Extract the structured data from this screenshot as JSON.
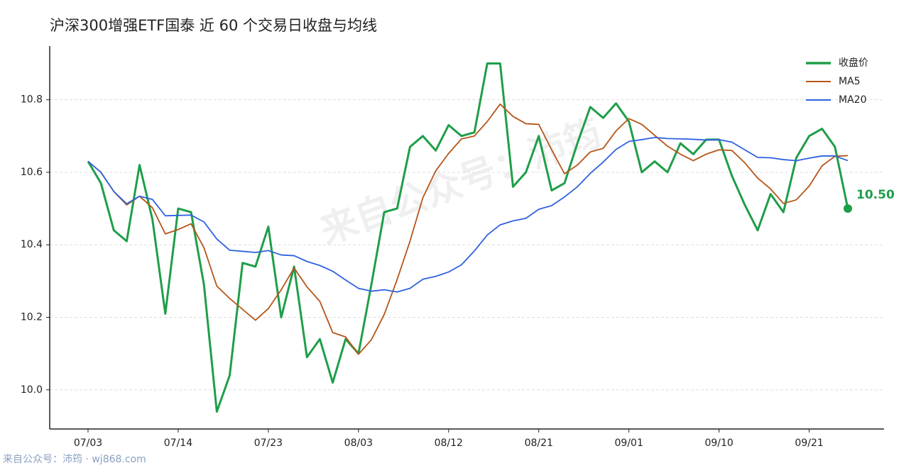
{
  "chart_data": {
    "type": "line",
    "title": "沪深300增强ETF国泰 近 60 个交易日收盘与均线",
    "watermark": "来自公众号：沛筠",
    "footer": "来自公众号：沛筠 · wj868.com",
    "categories": [
      "07/03",
      null,
      null,
      null,
      null,
      null,
      null,
      "07/14",
      null,
      null,
      null,
      null,
      null,
      null,
      "07/23",
      null,
      null,
      null,
      null,
      null,
      null,
      "08/03",
      null,
      null,
      null,
      null,
      null,
      null,
      "08/12",
      null,
      null,
      null,
      null,
      null,
      null,
      "08/21",
      null,
      null,
      null,
      null,
      null,
      null,
      "09/01",
      null,
      null,
      null,
      null,
      null,
      null,
      "09/10",
      null,
      null,
      null,
      null,
      null,
      null,
      "09/21",
      null,
      null,
      null
    ],
    "series": [
      {
        "name": "收盘价",
        "color": "#1f9e49",
        "values": [
          10.63,
          10.57,
          10.44,
          10.41,
          10.62,
          10.47,
          10.21,
          10.5,
          10.49,
          10.29,
          9.94,
          10.04,
          10.35,
          10.34,
          10.45,
          10.2,
          10.34,
          10.09,
          10.14,
          10.02,
          10.14,
          10.1,
          10.29,
          10.49,
          10.5,
          10.67,
          10.7,
          10.66,
          10.73,
          10.7,
          10.71,
          10.9,
          10.9,
          10.56,
          10.6,
          10.7,
          10.55,
          10.57,
          10.68,
          10.78,
          10.75,
          10.79,
          10.74,
          10.6,
          10.63,
          10.6,
          10.68,
          10.65,
          10.69,
          10.69,
          10.59,
          10.51,
          10.44,
          10.54,
          10.49,
          10.64,
          10.7,
          10.72,
          10.67,
          10.5
        ],
        "value_labels": [
          null,
          null,
          null,
          null,
          null,
          null,
          null,
          null,
          null,
          null,
          null,
          null,
          null,
          null,
          null,
          null,
          null,
          null,
          null,
          null,
          null,
          null,
          null,
          null,
          null,
          null,
          null,
          null,
          null,
          null,
          null,
          null,
          null,
          null,
          null,
          null,
          null,
          null,
          null,
          null,
          null,
          null,
          null,
          null,
          null,
          null,
          null,
          null,
          null,
          null,
          null,
          null,
          null,
          null,
          null,
          null,
          null,
          null,
          null,
          "10.50"
        ]
      },
      {
        "name": "MA5",
        "color": "#b5561a",
        "values": [
          10.63,
          10.6,
          10.547,
          10.51,
          10.534,
          10.502,
          10.43,
          10.442,
          10.458,
          10.392,
          10.286,
          10.252,
          10.222,
          10.192,
          10.224,
          10.276,
          10.336,
          10.284,
          10.244,
          10.158,
          10.146,
          10.098,
          10.138,
          10.208,
          10.304,
          10.41,
          10.53,
          10.604,
          10.652,
          10.692,
          10.7,
          10.74,
          10.788,
          10.754,
          10.734,
          10.732,
          10.662,
          10.596,
          10.62,
          10.656,
          10.666,
          10.714,
          10.748,
          10.732,
          10.702,
          10.672,
          10.65,
          10.632,
          10.65,
          10.662,
          10.66,
          10.626,
          10.584,
          10.554,
          10.514,
          10.524,
          10.562,
          10.618,
          10.644,
          10.646
        ]
      },
      {
        "name": "MA20",
        "color": "#2f62e0",
        "values": [
          10.63,
          10.6,
          10.547,
          10.513,
          10.534,
          10.525,
          10.48,
          10.481,
          10.482,
          10.463,
          10.416,
          10.385,
          10.382,
          10.379,
          10.384,
          10.372,
          10.37,
          10.354,
          10.343,
          10.327,
          10.303,
          10.28,
          10.272,
          10.276,
          10.27,
          10.28,
          10.305,
          10.313,
          10.325,
          10.345,
          10.383,
          10.427,
          10.455,
          10.466,
          10.473,
          10.498,
          10.508,
          10.532,
          10.56,
          10.597,
          10.628,
          10.663,
          10.685,
          10.69,
          10.696,
          10.693,
          10.692,
          10.691,
          10.689,
          10.69,
          10.683,
          10.662,
          10.641,
          10.64,
          10.635,
          10.632,
          10.639,
          10.645,
          10.645,
          10.632
        ]
      }
    ],
    "ylim": [
      9.892,
      10.948
    ],
    "yticks": [
      {
        "value": 10,
        "label": "10.0"
      },
      10.2,
      10.4,
      10.6,
      10.8
    ],
    "grid": true,
    "legend": "upper right"
  }
}
